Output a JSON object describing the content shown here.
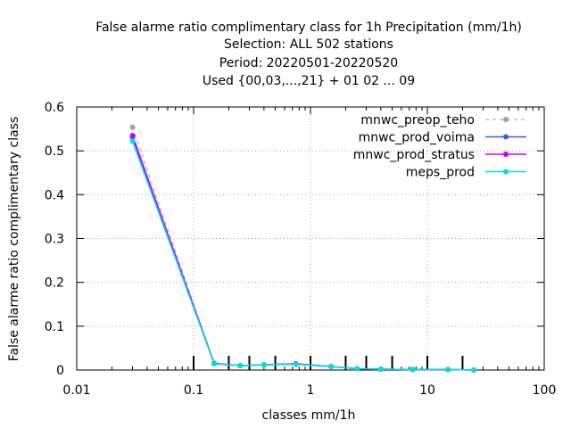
{
  "chart_data": {
    "type": "line",
    "title": [
      "False alarme ratio complimentary class  for 1h Precipitation (mm/1h)",
      "Selection: ALL    502 stations",
      "Period: 20220501-20220520",
      "Used {00,03,...,21} + 01 02 ... 09"
    ],
    "xlabel": "classes mm/1h",
    "ylabel": "False alarme ratio complimentary class",
    "xscale": "log",
    "xlim": [
      0.01,
      100
    ],
    "ylim": [
      0,
      0.6
    ],
    "xticks": [
      "0.01",
      "0.1",
      "1",
      "10",
      "100"
    ],
    "yticks": [
      "0",
      "0.1",
      "0.2",
      "0.3",
      "0.4",
      "0.5",
      "0.6"
    ],
    "grid": true,
    "legend_position": "top-right",
    "class_marks": [
      0.1,
      0.2,
      0.3,
      0.5,
      1,
      2,
      3,
      5,
      10,
      20
    ],
    "series": [
      {
        "name": "mnwc_preop_teho",
        "color": "#a0a0a0",
        "dashed": true,
        "x": [
          0.03,
          0.15,
          0.25,
          0.4,
          0.75,
          1.5,
          2.5,
          4,
          7.5,
          15,
          25
        ],
        "y": [
          0.554,
          0.015,
          0.01,
          0.012,
          0.014,
          0.008,
          0.003,
          0.002,
          0.001,
          0.001,
          0.0
        ]
      },
      {
        "name": "mnwc_prod_voima",
        "color": "#3a5fcd",
        "dashed": false,
        "x": [
          0.03,
          0.15,
          0.25,
          0.4,
          0.75,
          1.5,
          2.5,
          4,
          7.5,
          15,
          25
        ],
        "y": [
          0.531,
          0.015,
          0.01,
          0.012,
          0.014,
          0.008,
          0.003,
          0.002,
          0.001,
          0.001,
          0.0
        ]
      },
      {
        "name": "mnwc_prod_stratus",
        "color": "#c000ff",
        "dashed": false,
        "x": [
          0.03,
          0.15,
          0.25,
          0.4,
          0.75,
          1.5,
          2.5,
          4,
          7.5,
          15,
          25
        ],
        "y": [
          0.535,
          0.015,
          0.01,
          0.012,
          0.014,
          0.008,
          0.003,
          0.002,
          0.001,
          0.001,
          0.0
        ]
      },
      {
        "name": "meps_prod",
        "color": "#00e0e0",
        "dashed": false,
        "x": [
          0.03,
          0.15,
          0.25,
          0.4,
          0.75,
          1.5,
          2.5,
          4,
          7.5,
          15,
          25
        ],
        "y": [
          0.522,
          0.014,
          0.01,
          0.012,
          0.013,
          0.008,
          0.003,
          0.002,
          0.001,
          0.001,
          0.0
        ]
      }
    ]
  }
}
